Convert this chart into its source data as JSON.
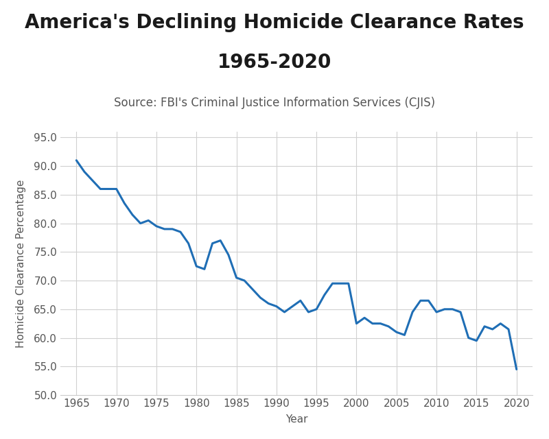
{
  "title_line1": "America's Declining Homicide Clearance Rates",
  "title_line2": "1965-2020",
  "subtitle": "Source: FBI's Criminal Justice Information Services (CJIS)",
  "xlabel": "Year",
  "ylabel": "Homicide Clearance Percentage",
  "line_color": "#1f6eb5",
  "line_width": 2.2,
  "background_color": "#ffffff",
  "grid_color": "#d0d0d0",
  "ylim": [
    50,
    96
  ],
  "yticks": [
    50.0,
    55.0,
    60.0,
    65.0,
    70.0,
    75.0,
    80.0,
    85.0,
    90.0,
    95.0
  ],
  "xticks": [
    1965,
    1970,
    1975,
    1980,
    1985,
    1990,
    1995,
    2000,
    2005,
    2010,
    2015,
    2020
  ],
  "years": [
    1965,
    1966,
    1967,
    1968,
    1969,
    1970,
    1971,
    1972,
    1973,
    1974,
    1975,
    1976,
    1977,
    1978,
    1979,
    1980,
    1981,
    1982,
    1983,
    1984,
    1985,
    1986,
    1987,
    1988,
    1989,
    1990,
    1991,
    1992,
    1993,
    1994,
    1995,
    1996,
    1997,
    1998,
    1999,
    2000,
    2001,
    2002,
    2003,
    2004,
    2005,
    2006,
    2007,
    2008,
    2009,
    2010,
    2011,
    2012,
    2013,
    2014,
    2015,
    2016,
    2017,
    2018,
    2019,
    2020
  ],
  "values": [
    91.0,
    89.0,
    87.5,
    86.0,
    86.0,
    86.0,
    83.5,
    81.5,
    80.0,
    80.5,
    79.5,
    79.0,
    79.0,
    78.5,
    76.5,
    72.5,
    72.0,
    76.5,
    77.0,
    74.5,
    70.5,
    70.0,
    68.5,
    67.0,
    66.0,
    65.5,
    64.5,
    65.5,
    66.5,
    64.5,
    65.0,
    67.5,
    69.5,
    69.5,
    69.5,
    62.5,
    63.5,
    62.5,
    62.5,
    62.0,
    61.0,
    60.5,
    64.5,
    66.5,
    66.5,
    64.5,
    65.0,
    65.0,
    64.5,
    60.0,
    59.5,
    62.0,
    61.5,
    62.5,
    61.5,
    54.5
  ],
  "title_fontsize": 20,
  "subtitle_fontsize": 12,
  "tick_labelsize": 11,
  "axis_label_fontsize": 11
}
